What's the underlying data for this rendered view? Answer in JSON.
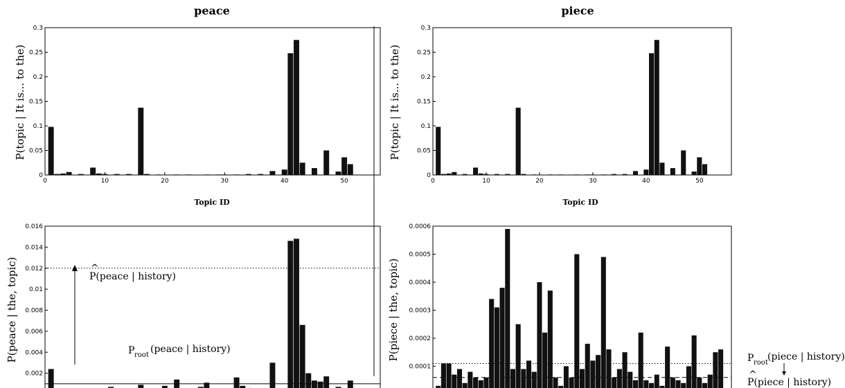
{
  "titles": {
    "left": "peace",
    "right": "piece"
  },
  "panel_labels": {
    "tl_ylabel": "P(topic | It is... to the)",
    "tl_xlabel": "Topic ID",
    "tr_ylabel": "P(topic | It is... to the)",
    "tr_xlabel": "Topic ID",
    "bl_ylabel": "P(peace | the, topic)",
    "br_ylabel": "P(piece | the, topic)"
  },
  "annotations": {
    "bl_hat_main": "P(peace | history)",
    "bl_hat_caret": "^",
    "bl_root_p": "P",
    "bl_root_sub": "root",
    "bl_root_rest": "(peace | history)",
    "br_root_p": "P",
    "br_root_sub": "root",
    "br_root_rest": "(piece | history)",
    "br_hat_main": "P(piece | history)",
    "br_hat_caret": "^"
  },
  "chart_data": [
    {
      "id": "tl",
      "type": "bar",
      "title": "peace",
      "xlabel": "Topic ID",
      "ylabel": "P(topic | It is... to the)",
      "xlim": [
        0,
        56
      ],
      "ylim": [
        0,
        0.3
      ],
      "xticks": [
        0,
        10,
        20,
        30,
        40,
        50
      ],
      "yticks": [
        0,
        0.05,
        0.1,
        0.15,
        0.2,
        0.25,
        0.3
      ],
      "ytick_labels": [
        "0",
        "0.05",
        "0.1",
        "0.15",
        "0.2",
        "0.25",
        "0.3"
      ],
      "x": [
        1,
        2,
        3,
        4,
        6,
        8,
        9,
        10,
        12,
        14,
        16,
        17,
        19,
        22,
        24,
        27,
        29,
        30,
        32,
        34,
        36,
        38,
        40,
        41,
        42,
        43,
        45,
        47,
        49,
        50,
        51
      ],
      "values": [
        0.098,
        0.002,
        0.003,
        0.006,
        0.002,
        0.015,
        0.003,
        0.002,
        0.002,
        0.002,
        0.137,
        0.002,
        0.001,
        0.001,
        0.001,
        0.001,
        0.001,
        0.001,
        0.001,
        0.002,
        0.002,
        0.008,
        0.011,
        0.248,
        0.275,
        0.025,
        0.014,
        0.05,
        0.007,
        0.036,
        0.022
      ],
      "hlines": []
    },
    {
      "id": "tr",
      "type": "bar",
      "title": "piece",
      "xlabel": "Topic ID",
      "ylabel": "P(topic | It is... to the)",
      "xlim": [
        0,
        56
      ],
      "ylim": [
        0,
        0.3
      ],
      "xticks": [
        0,
        10,
        20,
        30,
        40,
        50
      ],
      "yticks": [
        0,
        0.05,
        0.1,
        0.15,
        0.2,
        0.25,
        0.3
      ],
      "ytick_labels": [
        "0",
        "0.05",
        "0.1",
        "0.15",
        "0.2",
        "0.25",
        "0.3"
      ],
      "x": [
        1,
        2,
        3,
        4,
        6,
        8,
        9,
        10,
        12,
        14,
        16,
        17,
        19,
        22,
        24,
        27,
        29,
        30,
        32,
        34,
        36,
        38,
        40,
        41,
        42,
        43,
        45,
        47,
        49,
        50,
        51
      ],
      "values": [
        0.098,
        0.002,
        0.003,
        0.006,
        0.002,
        0.015,
        0.003,
        0.002,
        0.002,
        0.002,
        0.137,
        0.002,
        0.001,
        0.001,
        0.001,
        0.001,
        0.001,
        0.001,
        0.001,
        0.002,
        0.002,
        0.008,
        0.011,
        0.248,
        0.275,
        0.025,
        0.014,
        0.05,
        0.007,
        0.036,
        0.022
      ],
      "hlines": []
    },
    {
      "id": "bl",
      "type": "bar",
      "ylabel": "P(peace | the, topic)",
      "xlim": [
        0,
        56
      ],
      "ylim": [
        0,
        0.016
      ],
      "xticks": [
        0,
        10,
        20,
        30,
        40,
        50
      ],
      "yticks": [
        0,
        0.002,
        0.004,
        0.006,
        0.008,
        0.01,
        0.012,
        0.014,
        0.016
      ],
      "ytick_labels": [
        "0",
        "0.002",
        "0.004",
        "0.006",
        "0.008",
        "0.01",
        "0.012",
        "0.014",
        "0.016"
      ],
      "x": [
        1,
        3,
        5,
        7,
        9,
        11,
        14,
        16,
        18,
        20,
        22,
        24,
        26,
        27,
        29,
        32,
        33,
        34,
        36,
        38,
        39,
        41,
        42,
        43,
        44,
        45,
        46,
        47,
        48,
        49,
        51,
        52,
        54
      ],
      "values": [
        0.0024,
        0.0003,
        0.0002,
        0.0004,
        0.0002,
        0.0007,
        0.0002,
        0.0009,
        0.0002,
        0.0008,
        0.0014,
        0.0002,
        0.0007,
        0.0011,
        0.0002,
        0.0016,
        0.0008,
        0.0006,
        0.0002,
        0.003,
        0.0004,
        0.0146,
        0.0148,
        0.0066,
        0.002,
        0.0013,
        0.0012,
        0.0017,
        0.0002,
        0.0007,
        0.0013,
        0.0003,
        0.0003
      ],
      "hlines": [
        {
          "y": 0.012,
          "style": "dotted",
          "label": "P(peace | history)"
        },
        {
          "y": 0.001,
          "style": "solid",
          "label": "Proot(peace | history)"
        }
      ]
    },
    {
      "id": "br",
      "type": "bar",
      "ylabel": "P(piece | the, topic)",
      "xlim": [
        0,
        56
      ],
      "ylim": [
        0,
        0.0006
      ],
      "xticks": [
        0,
        10,
        20,
        30,
        40,
        50
      ],
      "yticks": [
        0,
        0.0001,
        0.0002,
        0.0003,
        0.0004,
        0.0005,
        0.0006
      ],
      "ytick_labels": [
        "0",
        "0.0001",
        "0.0002",
        "0.0003",
        "0.0004",
        "0.0005",
        "0.0006"
      ],
      "x": [
        1,
        2,
        3,
        4,
        5,
        6,
        7,
        8,
        9,
        10,
        11,
        12,
        13,
        14,
        15,
        16,
        17,
        18,
        19,
        20,
        21,
        22,
        23,
        24,
        25,
        26,
        27,
        28,
        29,
        30,
        31,
        32,
        33,
        34,
        35,
        36,
        37,
        38,
        39,
        40,
        41,
        42,
        43,
        44,
        45,
        46,
        47,
        48,
        49,
        50,
        51,
        52,
        53,
        54
      ],
      "values": [
        3e-05,
        0.00011,
        0.00011,
        7e-05,
        9e-05,
        4e-05,
        8e-05,
        6e-05,
        5e-05,
        6e-05,
        0.00034,
        0.00031,
        0.00038,
        0.00059,
        9e-05,
        0.00025,
        9e-05,
        0.00012,
        8e-05,
        0.0004,
        0.00022,
        0.00037,
        6e-05,
        3e-05,
        0.0001,
        6e-05,
        0.0005,
        9e-05,
        0.00018,
        0.00012,
        0.00014,
        0.00049,
        0.00016,
        6e-05,
        9e-05,
        0.00015,
        8e-05,
        5e-05,
        0.00022,
        5e-05,
        4e-05,
        7e-05,
        3e-05,
        0.00017,
        6e-05,
        5e-05,
        4e-05,
        0.0001,
        0.00021,
        6e-05,
        4e-05,
        7e-05,
        0.00015,
        0.00016
      ],
      "hlines": [
        {
          "y": 0.00011,
          "style": "dotted",
          "label": "Proot(piece | history)"
        },
        {
          "y": 6e-05,
          "style": "dashed",
          "label": "P(piece | history)"
        }
      ]
    }
  ]
}
